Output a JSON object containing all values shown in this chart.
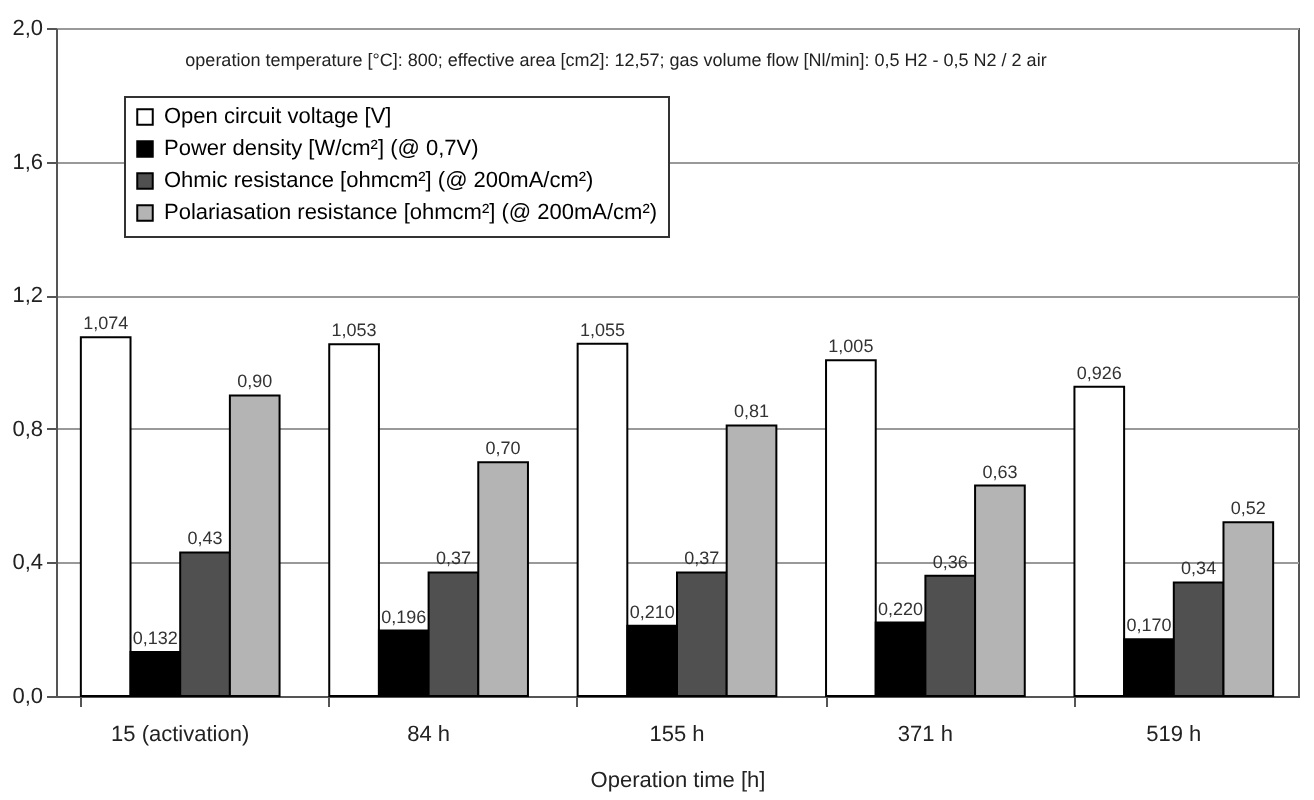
{
  "chart_data": {
    "type": "bar",
    "xlabel": "Operation time [h]",
    "categories": [
      "15 (activation)",
      "84 h",
      "155 h",
      "371 h",
      "519 h"
    ],
    "series": [
      {
        "name": "Open circuit voltage [V]",
        "color": "#ffffff",
        "values": [
          1.074,
          1.053,
          1.055,
          1.005,
          0.926
        ],
        "value_labels": [
          "1,074",
          "1,053",
          "1,055",
          "1,005",
          "0,926"
        ]
      },
      {
        "name": "Power density [W/cm²] (@ 0,7V)",
        "color": "#000000",
        "values": [
          0.132,
          0.196,
          0.21,
          0.22,
          0.17
        ],
        "value_labels": [
          "0,132",
          "0,196",
          "0,210",
          "0,220",
          "0,170"
        ]
      },
      {
        "name": "Ohmic resistance [ohmcm²] (@ 200mA/cm²)",
        "color": "#505050",
        "values": [
          0.43,
          0.37,
          0.37,
          0.36,
          0.34
        ],
        "value_labels": [
          "0,43",
          "0,37",
          "0,37",
          "0,36",
          "0,34"
        ]
      },
      {
        "name": "Polariasation resistance [ohmcm²] (@ 200mA/cm²)",
        "color": "#b4b4b4",
        "values": [
          0.9,
          0.7,
          0.81,
          0.63,
          0.52
        ],
        "value_labels": [
          "0,90",
          "0,70",
          "0,81",
          "0,63",
          "0,52"
        ]
      }
    ],
    "ylim": [
      0,
      2
    ],
    "yticks": [
      {
        "value": 0,
        "label": "0,0"
      },
      {
        "value": 0.4,
        "label": "0,4"
      },
      {
        "value": 0.8,
        "label": "0,8"
      },
      {
        "value": 1.2,
        "label": "1,2"
      },
      {
        "value": 1.6,
        "label": "1,6"
      },
      {
        "value": 2,
        "label": "2,0"
      }
    ],
    "grid": "y",
    "legend": "top left",
    "annotations": [
      "operation temperature [°C]: 800; effective area [cm2]: 12,57; gas volume flow [Nl/min]: 0,5 H2  - 0,5 N2 / 2 air"
    ]
  }
}
